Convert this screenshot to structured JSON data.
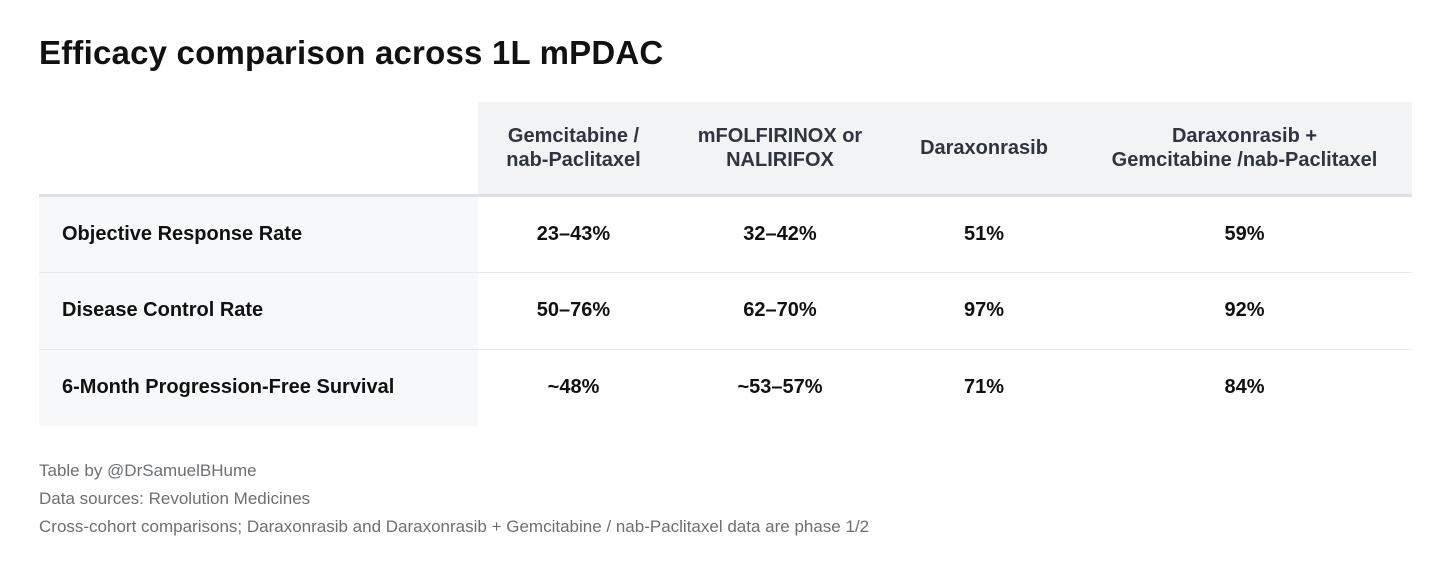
{
  "title": "Efficacy comparison across 1L mPDAC",
  "table": {
    "columns": [
      "",
      "Gemcitabine /\nnab-Paclitaxel",
      "mFOLFIRINOX or\nNALIRIFOX",
      "Daraxonrasib",
      "Daraxonrasib +\nGemcitabine /nab-Paclitaxel"
    ],
    "rows": [
      {
        "label": "Objective Response Rate",
        "values": [
          "23–43%",
          "32–42%",
          "51%",
          "59%"
        ]
      },
      {
        "label": "Disease Control Rate",
        "values": [
          "50–76%",
          "62–70%",
          "97%",
          "92%"
        ]
      },
      {
        "label": "6-Month Progression-Free Survival",
        "values": [
          "~48%",
          "~53–57%",
          "71%",
          "84%"
        ]
      }
    ]
  },
  "footer": {
    "credit": "Table by @DrSamuelBHume",
    "sources": "Data sources: Revolution Medicines",
    "note": "Cross-cohort comparisons; Daraxonrasib and Daraxonrasib + Gemcitabine / nab-Paclitaxel data are phase 1/2"
  }
}
